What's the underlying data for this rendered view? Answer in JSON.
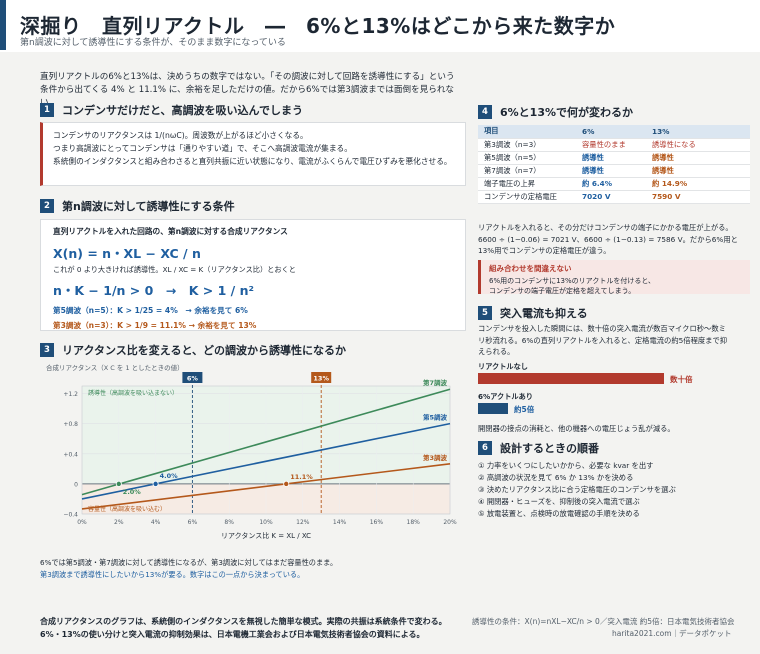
{
  "header": {
    "title": "深掘り　直列リアクトル　―　6%と13%はどこから来た数字か",
    "subtitle": "第n調波に対して誘導性にする条件が、そのまま数字になっている"
  },
  "intro": {
    "line1": "直列リアクトルの6%と13%は、決めうちの数字ではない。「その調波に対して回路を誘導性にする」という",
    "line2": "条件から出てくる 4% と 11.1% に、余裕を足しただけの値。だから6%では第3調波までは面倒を見られない。"
  },
  "sections": {
    "s1": {
      "num": "1",
      "title": "コンデンサだけだと、高調波を吸い込んでしまう",
      "lines": [
        "コンデンサのリアクタンスは 1/(nωC)。周波数が上がるほど小さくなる。",
        "つまり高調波にとってコンデンサは「通りやすい道」で、そこへ高調波電流が集まる。",
        "系統側のインダクタンスと組み合わさると直列共振に近い状態になり、電流がふくらんで電圧ひずみを悪化させる。"
      ]
    },
    "s2": {
      "num": "2",
      "title": "第n調波に対して誘導性にする条件",
      "lead": "直列リアクトルを入れた回路の、第n調波に対する合成リアクタンス",
      "formula1": "X(n) = n・XL − XC / n",
      "note": "これが 0 より大きければ誘導性。XL / XC = K（リアクタンス比）とおくと",
      "formula2": "n・K − 1/n > 0　→　K > 1 / n²",
      "row5": "第5調波（n=5）：K > 1/25 = 4%　→ 余裕を見て 6%",
      "row3": "第3調波（n=3）：K > 1/9 = 11.1% → 余裕を見て 13%"
    },
    "s3": {
      "num": "3",
      "title": "リアクタンス比を変えると、どの調波から誘導性になるか"
    },
    "s4": {
      "num": "4",
      "title": "6%と13%で何が変わるか"
    },
    "s5": {
      "num": "5",
      "title": "突入電流も抑える",
      "text1": "コンデンサを投入した瞬間には、数十倍の突入電流が数百マイクロ秒〜数ミ",
      "text2": "リ秒流れる。6%の直列リアクトルを入れると、定格電流の約5倍程度まで抑",
      "text3": "えられる。",
      "bar1_label": "リアクトルなし",
      "bar1_value": "数十倍",
      "bar2_label": "6%アクトルあり",
      "bar2_value": "約5倍",
      "note": "開閉器の接点の消耗と、他の機器への電圧じょう乱が減る。"
    },
    "s6": {
      "num": "6",
      "title": "設計するときの順番",
      "steps": [
        "① 力率をいくつにしたいかから、必要な kvar を出す",
        "② 高調波の状況を見て 6% か 13% かを決める",
        "③ 決めたリアクタンス比に合う定格電圧のコンデンサを選ぶ",
        "④ 開閉器・ヒューズを、抑制後の突入電流で選ぶ",
        "⑤ 放電装置と、点検時の放電確認の手順を決める"
      ]
    }
  },
  "table": {
    "headers": [
      "項目",
      "6%",
      "13%"
    ],
    "rows": [
      [
        "第3調波（n=3）",
        "容量性のまま",
        "誘導性になる"
      ],
      [
        "第5調波（n=5）",
        "誘導性",
        "誘導性"
      ],
      [
        "第7調波（n=7）",
        "誘導性",
        "誘導性"
      ],
      [
        "端子電圧の上昇",
        "約 6.4%",
        "約 14.9%"
      ],
      [
        "コンデンサの定格電圧",
        "7020 V",
        "7590 V"
      ]
    ]
  },
  "s4_text": {
    "line1": "リアクトルを入れると、その分だけコンデンサの端子にかかる電圧が上がる。",
    "line2": "6600 ÷ (1−0.06) = 7021 V、6600 ÷ (1−0.13) = 7586 V。だから6%用と",
    "line3": "13%用でコンデンサの定格電圧が違う。"
  },
  "warning": {
    "title": "組み合わせを間違えない",
    "line1": "6%用のコンデンサに13%のリアクトルを付けると、",
    "line2": "コンデンサの端子電圧が定格を超えてしまう。"
  },
  "chart_caption": {
    "line1": "6%では第5調波・第7調波に対して誘導性になるが、第3調波に対してはまだ容量性のまま。",
    "line2": "第3調波まで誘導性にしたいから13%が要る。数字はこの一点から決まっている。"
  },
  "footer": {
    "line1": "合成リアクタンスのグラフは、系統側のインダクタンスを無視した簡単な模式。実際の共振は系統条件で変わる。",
    "line2": "6%・13%の使い分けと突入電流の抑制効果は、日本電機工業会および日本電気技術者協会の資料による。",
    "right1": "誘導性の条件：X(n)=nXL−XC/n > 0／突入電流 約5倍：日本電気技術者協会",
    "right2": "harita2021.com｜データポケット"
  },
  "colors": {
    "navy": "#1f4e79",
    "blue": "#1f5fa0",
    "green": "#3d8a5a",
    "orange": "#b4581b",
    "red": "#b23a2e"
  },
  "chart_data": {
    "type": "line",
    "title": "合成リアクタンス（X C を 1 としたときの値）",
    "xlabel": "リアクタンス比 K = XL / XC",
    "x_ticks": [
      "0%",
      "2%",
      "4%",
      "6%",
      "8%",
      "10%",
      "12%",
      "14%",
      "16%",
      "18%",
      "20%"
    ],
    "y_ticks": [
      "+1.2",
      "+0.8",
      "+0.4",
      "0",
      "−0.4"
    ],
    "xlim": [
      0,
      20
    ],
    "ylim": [
      -0.4,
      1.3
    ],
    "series": [
      {
        "name": "第7調波",
        "color": "#3d8a5a",
        "n": 7,
        "x": [
          0,
          20
        ],
        "y": [
          -0.143,
          1.257
        ]
      },
      {
        "name": "第5調波",
        "color": "#1f5fa0",
        "n": 5,
        "x": [
          0,
          20
        ],
        "y": [
          -0.2,
          0.8
        ]
      },
      {
        "name": "第3調波",
        "color": "#b4581b",
        "n": 3,
        "x": [
          0,
          20
        ],
        "y": [
          -0.333,
          0.267
        ]
      }
    ],
    "zero_crossings": [
      {
        "x": 2.0,
        "label": "2.0%",
        "color": "#3d8a5a"
      },
      {
        "x": 4.0,
        "label": "4.0%",
        "color": "#1f5fa0"
      },
      {
        "x": 11.1,
        "label": "11.1%",
        "color": "#b4581b"
      }
    ],
    "markers": [
      {
        "x": 6,
        "label": "6%",
        "color": "#1f4e79"
      },
      {
        "x": 13,
        "label": "13%",
        "color": "#b4581b"
      }
    ],
    "regions": {
      "inductive": "誘導性（高調波を吸い込まない）",
      "capacitive": "容量性（高調波を吸い込む）"
    }
  }
}
